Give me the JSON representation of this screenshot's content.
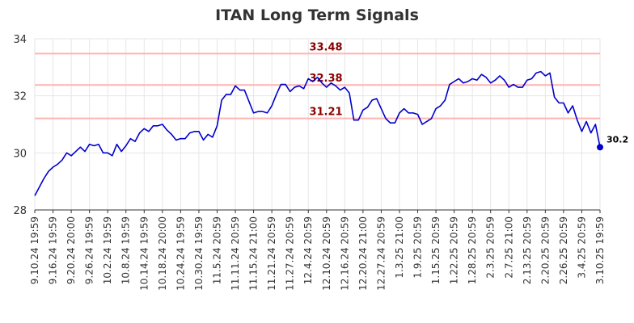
{
  "chart_data": {
    "type": "line",
    "title": "ITAN Long Term Signals",
    "xlabel": "",
    "ylabel": "",
    "ylim": [
      28,
      34
    ],
    "yticks": [
      28,
      30,
      32,
      34
    ],
    "grid": true,
    "legend": "none",
    "colors": {
      "line": "#0000cc",
      "hline": "#ffb3b3",
      "hlabel": "#8b0000",
      "grid": "#e6e6e6"
    },
    "x_tick_labels": [
      "9.10.24 19:59",
      "9.16.24 19:59",
      "9.20.24 20:00",
      "9.26.24 19:59",
      "10.2.24 19:59",
      "10.8.24 19:59",
      "10.14.24 19:59",
      "10.18.24 20:00",
      "10.24.24 19:59",
      "10.30.24 19:59",
      "11.5.24 20:59",
      "11.11.24 20:59",
      "11.15.24 21:00",
      "11.21.24 20:59",
      "11.27.24 20:59",
      "12.4.24 20:59",
      "12.10.24 20:59",
      "12.16.24 20:59",
      "12.20.24 21:00",
      "12.27.24 20:59",
      "1.3.25 21:00",
      "1.9.25 20:59",
      "1.15.25 20:59",
      "1.22.25 20:59",
      "1.28.25 20:59",
      "2.3.25 20:59",
      "2.7.25 21:00",
      "2.13.25 20:59",
      "2.20.25 20:59",
      "2.26.25 20:59",
      "3.4.25 20:59",
      "3.10.25 19:59"
    ],
    "horizontal_lines": [
      {
        "value": 33.48,
        "label": "33.48"
      },
      {
        "value": 32.38,
        "label": "32.38"
      },
      {
        "value": 31.21,
        "label": "31.21"
      }
    ],
    "last_value_label": "30.2",
    "series": [
      {
        "values": [
          28.5,
          28.8,
          29.1,
          29.35,
          29.5,
          29.6,
          29.75,
          30.0,
          29.9,
          30.05,
          30.2,
          30.05,
          30.3,
          30.25,
          30.3,
          30.0,
          30.0,
          29.9,
          30.3,
          30.05,
          30.25,
          30.5,
          30.4,
          30.7,
          30.85,
          30.75,
          30.95,
          30.95,
          31.0,
          30.8,
          30.65,
          30.45,
          30.5,
          30.5,
          30.7,
          30.75,
          30.75,
          30.45,
          30.65,
          30.55,
          30.95,
          31.85,
          32.05,
          32.05,
          32.35,
          32.2,
          32.2,
          31.8,
          31.4,
          31.45,
          31.45,
          31.4,
          31.65,
          32.05,
          32.4,
          32.4,
          32.15,
          32.3,
          32.35,
          32.25,
          32.6,
          32.5,
          32.65,
          32.45,
          32.3,
          32.45,
          32.35,
          32.2,
          32.3,
          32.1,
          31.15,
          31.15,
          31.5,
          31.6,
          31.85,
          31.9,
          31.55,
          31.2,
          31.05,
          31.05,
          31.4,
          31.55,
          31.4,
          31.4,
          31.35,
          31.0,
          31.1,
          31.2,
          31.55,
          31.65,
          31.85,
          32.4,
          32.5,
          32.6,
          32.45,
          32.5,
          32.6,
          32.55,
          32.75,
          32.65,
          32.45,
          32.55,
          32.7,
          32.55,
          32.3,
          32.4,
          32.3,
          32.3,
          32.55,
          32.6,
          32.8,
          32.85,
          32.7,
          32.8,
          31.95,
          31.75,
          31.75,
          31.4,
          31.65,
          31.15,
          30.75,
          31.1,
          30.7,
          31.0,
          30.2
        ]
      }
    ]
  }
}
